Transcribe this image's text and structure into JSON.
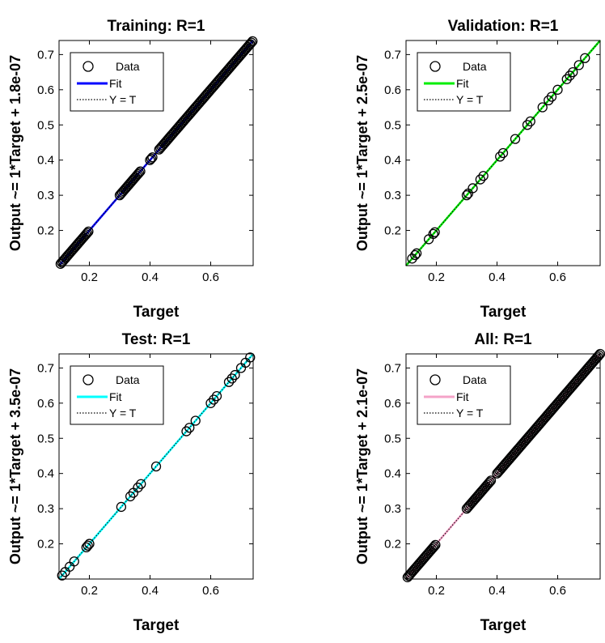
{
  "figure": {
    "panels": [
      {
        "title": "Training: R=1",
        "xlabel": "Target",
        "ylabel": "Output ~= 1*Target + 1.8e-07",
        "fit_color": "#0000ff",
        "legend": [
          "Data",
          "Fit",
          "Y = T"
        ]
      },
      {
        "title": "Validation: R=1",
        "xlabel": "Target",
        "ylabel": "Output ~= 1*Target + 2.5e-07",
        "fit_color": "#00ee00",
        "legend": [
          "Data",
          "Fit",
          "Y = T"
        ]
      },
      {
        "title": "Test: R=1",
        "xlabel": "Target",
        "ylabel": "Output ~= 1*Target + 3.5e-07",
        "fit_color": "#00ffff",
        "legend": [
          "Data",
          "Fit",
          "Y = T"
        ]
      },
      {
        "title": "All: R=1",
        "xlabel": "Target",
        "ylabel": "Output ~= 1*Target + 2.1e-07",
        "fit_color": "#f4a3c8",
        "legend": [
          "Data",
          "Fit",
          "Y = T"
        ]
      }
    ]
  },
  "chart_data": [
    {
      "type": "scatter",
      "title": "Training: R=1",
      "xlabel": "Target",
      "ylabel": "Output ~= 1*Target + 1.8e-07",
      "xlim": [
        0.1,
        0.74
      ],
      "ylim": [
        0.1,
        0.74
      ],
      "xticks": [
        0.2,
        0.4,
        0.6
      ],
      "yticks": [
        0.2,
        0.3,
        0.4,
        0.5,
        0.6,
        0.7
      ],
      "legend": [
        "Data",
        "Fit",
        "Y = T"
      ],
      "legend_position": "top-left",
      "fit": {
        "slope": 1,
        "intercept": 1.8e-07,
        "color": "#0000ff"
      },
      "data_ranges": [
        [
          0.105,
          0.2
        ],
        [
          0.3,
          0.37
        ],
        [
          0.4,
          0.41
        ],
        [
          0.43,
          0.74
        ]
      ],
      "data_points": []
    },
    {
      "type": "scatter",
      "title": "Validation: R=1",
      "xlabel": "Target",
      "ylabel": "Output ~= 1*Target + 2.5e-07",
      "xlim": [
        0.1,
        0.74
      ],
      "ylim": [
        0.1,
        0.74
      ],
      "xticks": [
        0.2,
        0.4,
        0.6
      ],
      "yticks": [
        0.2,
        0.3,
        0.4,
        0.5,
        0.6,
        0.7
      ],
      "legend": [
        "Data",
        "Fit",
        "Y = T"
      ],
      "legend_position": "top-left",
      "fit": {
        "slope": 1,
        "intercept": 2.5e-07,
        "color": "#00ee00"
      },
      "data_ranges": [],
      "data_points": [
        0.12,
        0.13,
        0.135,
        0.175,
        0.19,
        0.195,
        0.3,
        0.305,
        0.32,
        0.345,
        0.355,
        0.41,
        0.42,
        0.46,
        0.5,
        0.51,
        0.55,
        0.57,
        0.58,
        0.6,
        0.63,
        0.64,
        0.65,
        0.67,
        0.69
      ]
    },
    {
      "type": "scatter",
      "title": "Test: R=1",
      "xlabel": "Target",
      "ylabel": "Output ~= 1*Target + 3.5e-07",
      "xlim": [
        0.1,
        0.74
      ],
      "ylim": [
        0.1,
        0.74
      ],
      "xticks": [
        0.2,
        0.4,
        0.6
      ],
      "yticks": [
        0.2,
        0.3,
        0.4,
        0.5,
        0.6,
        0.7
      ],
      "legend": [
        "Data",
        "Fit",
        "Y = T"
      ],
      "legend_position": "top-left",
      "fit": {
        "slope": 1,
        "intercept": 3.5e-07,
        "color": "#00ffff"
      },
      "data_ranges": [],
      "data_points": [
        0.11,
        0.12,
        0.135,
        0.15,
        0.19,
        0.195,
        0.2,
        0.305,
        0.335,
        0.345,
        0.36,
        0.37,
        0.42,
        0.52,
        0.53,
        0.55,
        0.6,
        0.61,
        0.62,
        0.66,
        0.67,
        0.68,
        0.7,
        0.715,
        0.73
      ]
    },
    {
      "type": "scatter",
      "title": "All: R=1",
      "xlabel": "Target",
      "ylabel": "Output ~= 1*Target + 2.1e-07",
      "xlim": [
        0.1,
        0.74
      ],
      "ylim": [
        0.1,
        0.74
      ],
      "xticks": [
        0.2,
        0.4,
        0.6
      ],
      "yticks": [
        0.2,
        0.3,
        0.4,
        0.5,
        0.6,
        0.7
      ],
      "legend": [
        "Data",
        "Fit",
        "Y = T"
      ],
      "legend_position": "top-left",
      "fit": {
        "slope": 1,
        "intercept": 2.1e-07,
        "color": "#f4a3c8"
      },
      "data_ranges": [
        [
          0.105,
          0.2
        ],
        [
          0.3,
          0.38
        ],
        [
          0.4,
          0.74
        ]
      ],
      "data_points": []
    }
  ]
}
